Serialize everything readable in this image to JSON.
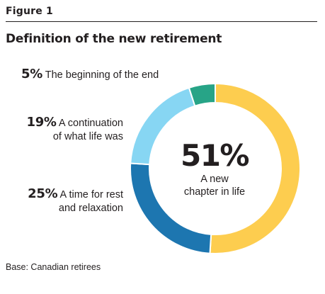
{
  "figure_label": "Figure 1",
  "chart_data": {
    "type": "pie",
    "title": "Definition of the new retirement",
    "slices": [
      {
        "value": 51,
        "label": "51%",
        "text": "A new chapter in life",
        "color": "#fdcd4f"
      },
      {
        "value": 25,
        "label": "25%",
        "text": "A time for rest and relaxation",
        "color": "#1d76b0"
      },
      {
        "value": 19,
        "label": "19%",
        "text": "A continuation of what life was",
        "color": "#87d6f3"
      },
      {
        "value": 5,
        "label": "5%",
        "text": "The beginning of the end",
        "color": "#27a487"
      }
    ]
  },
  "labels": {
    "beginning_pct": "5%",
    "beginning_text": "The beginning of the end",
    "continuation_pct": "19%",
    "continuation_line1": "A continuation",
    "continuation_line2": "of what life was",
    "rest_pct": "25%",
    "rest_line1": "A time for rest",
    "rest_line2": "and relaxation",
    "center_pct": "51%",
    "center_line1": "A new",
    "center_line2": "chapter in life"
  },
  "base_note": "Base: Canadian retirees"
}
